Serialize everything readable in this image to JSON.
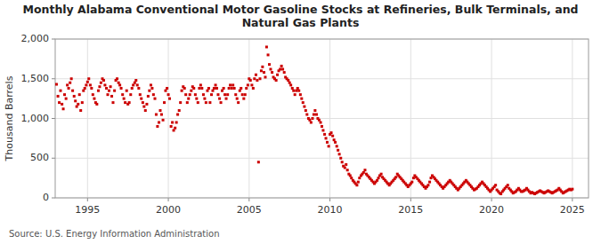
{
  "chart_data": {
    "type": "scatter",
    "title": "Monthly Alabama Conventional Motor Gasoline Stocks at Refineries, Bulk Terminals, and\nNatural Gas Plants",
    "ylabel": "Thousand Barrels",
    "annotation": "Source: U.S. Energy Information Administration",
    "color": "#cc0000",
    "marker": "square",
    "grid": true,
    "xlim": [
      1993.0,
      2026.0
    ],
    "ylim": [
      0,
      2000
    ],
    "xticks": [
      1995,
      2000,
      2005,
      2010,
      2015,
      2020,
      2025
    ],
    "yticks": [
      0,
      500,
      {
        "value": 1000,
        "label": "1,000"
      },
      {
        "value": 1500,
        "label": "1,500"
      },
      {
        "value": 2000,
        "label": "2,000"
      }
    ],
    "x": [
      1993.08,
      1993.17,
      1993.25,
      1993.33,
      1993.42,
      1993.5,
      1993.58,
      1993.67,
      1993.75,
      1993.83,
      1993.92,
      1994.0,
      1994.08,
      1994.17,
      1994.25,
      1994.33,
      1994.42,
      1994.5,
      1994.58,
      1994.67,
      1994.75,
      1994.83,
      1994.92,
      1995.0,
      1995.08,
      1995.17,
      1995.25,
      1995.33,
      1995.42,
      1995.5,
      1995.58,
      1995.67,
      1995.75,
      1995.83,
      1995.92,
      1996.0,
      1996.08,
      1996.17,
      1996.25,
      1996.33,
      1996.42,
      1996.5,
      1996.58,
      1996.67,
      1996.75,
      1996.83,
      1996.92,
      1997.0,
      1997.08,
      1997.17,
      1997.25,
      1997.33,
      1997.42,
      1997.5,
      1997.58,
      1997.67,
      1997.75,
      1997.83,
      1997.92,
      1998.0,
      1998.08,
      1998.17,
      1998.25,
      1998.33,
      1998.42,
      1998.5,
      1998.58,
      1998.67,
      1998.75,
      1998.83,
      1998.92,
      1999.0,
      1999.08,
      1999.17,
      1999.25,
      1999.33,
      1999.42,
      1999.5,
      1999.58,
      1999.67,
      1999.75,
      1999.83,
      1999.92,
      2000.0,
      2000.08,
      2000.17,
      2000.25,
      2000.33,
      2000.42,
      2000.5,
      2000.58,
      2000.67,
      2000.75,
      2000.83,
      2000.92,
      2001.0,
      2001.08,
      2001.17,
      2001.25,
      2001.33,
      2001.42,
      2001.5,
      2001.58,
      2001.67,
      2001.75,
      2001.83,
      2001.92,
      2002.0,
      2002.08,
      2002.17,
      2002.25,
      2002.33,
      2002.42,
      2002.5,
      2002.58,
      2002.67,
      2002.75,
      2002.83,
      2002.92,
      2003.0,
      2003.08,
      2003.17,
      2003.25,
      2003.33,
      2003.42,
      2003.5,
      2003.58,
      2003.67,
      2003.75,
      2003.83,
      2003.92,
      2004.0,
      2004.08,
      2004.17,
      2004.25,
      2004.33,
      2004.42,
      2004.5,
      2004.58,
      2004.67,
      2004.75,
      2004.83,
      2004.92,
      2005.0,
      2005.08,
      2005.17,
      2005.25,
      2005.33,
      2005.42,
      2005.5,
      2005.58,
      2005.67,
      2005.75,
      2005.83,
      2005.92,
      2006.0,
      2006.08,
      2006.17,
      2006.25,
      2006.33,
      2006.42,
      2006.5,
      2006.58,
      2006.67,
      2006.75,
      2006.83,
      2006.92,
      2007.0,
      2007.08,
      2007.17,
      2007.25,
      2007.33,
      2007.42,
      2007.5,
      2007.58,
      2007.67,
      2007.75,
      2007.83,
      2007.92,
      2008.0,
      2008.08,
      2008.17,
      2008.25,
      2008.33,
      2008.42,
      2008.5,
      2008.58,
      2008.67,
      2008.75,
      2008.83,
      2008.92,
      2009.0,
      2009.08,
      2009.17,
      2009.25,
      2009.33,
      2009.42,
      2009.5,
      2009.58,
      2009.67,
      2009.75,
      2009.83,
      2009.92,
      2010.0,
      2010.08,
      2010.17,
      2010.25,
      2010.33,
      2010.42,
      2010.5,
      2010.58,
      2010.67,
      2010.75,
      2010.83,
      2010.92,
      2011.0,
      2011.08,
      2011.17,
      2011.25,
      2011.33,
      2011.42,
      2011.5,
      2011.58,
      2011.67,
      2011.75,
      2011.83,
      2011.92,
      2012.0,
      2012.08,
      2012.17,
      2012.25,
      2012.33,
      2012.42,
      2012.5,
      2012.58,
      2012.67,
      2012.75,
      2012.83,
      2012.92,
      2013.0,
      2013.08,
      2013.17,
      2013.25,
      2013.33,
      2013.42,
      2013.5,
      2013.58,
      2013.67,
      2013.75,
      2013.83,
      2013.92,
      2014.0,
      2014.08,
      2014.17,
      2014.25,
      2014.33,
      2014.42,
      2014.5,
      2014.58,
      2014.67,
      2014.75,
      2014.83,
      2014.92,
      2015.0,
      2015.08,
      2015.17,
      2015.25,
      2015.33,
      2015.42,
      2015.5,
      2015.58,
      2015.67,
      2015.75,
      2015.83,
      2015.92,
      2016.0,
      2016.08,
      2016.17,
      2016.25,
      2016.33,
      2016.42,
      2016.5,
      2016.58,
      2016.67,
      2016.75,
      2016.83,
      2016.92,
      2017.0,
      2017.08,
      2017.17,
      2017.25,
      2017.33,
      2017.42,
      2017.5,
      2017.58,
      2017.67,
      2017.75,
      2017.83,
      2017.92,
      2018.0,
      2018.08,
      2018.17,
      2018.25,
      2018.33,
      2018.42,
      2018.5,
      2018.58,
      2018.67,
      2018.75,
      2018.83,
      2018.92,
      2019.0,
      2019.08,
      2019.17,
      2019.25,
      2019.33,
      2019.42,
      2019.5,
      2019.58,
      2019.67,
      2019.75,
      2019.83,
      2019.92,
      2020.0,
      2020.08,
      2020.17,
      2020.25,
      2020.33,
      2020.42,
      2020.5,
      2020.58,
      2020.67,
      2020.75,
      2020.83,
      2020.92,
      2021.0,
      2021.08,
      2021.17,
      2021.25,
      2021.33,
      2021.42,
      2021.5,
      2021.58,
      2021.67,
      2021.75,
      2021.83,
      2021.92,
      2022.0,
      2022.08,
      2022.17,
      2022.25,
      2022.33,
      2022.42,
      2022.5,
      2022.58,
      2022.67,
      2022.75,
      2022.83,
      2022.92,
      2023.0,
      2023.08,
      2023.17,
      2023.25,
      2023.33,
      2023.42,
      2023.5,
      2023.58,
      2023.67,
      2023.75,
      2023.83,
      2023.92,
      2024.0,
      2024.08,
      2024.17,
      2024.25,
      2024.33,
      2024.42,
      2024.5,
      2024.58,
      2024.67,
      2024.75,
      2024.83,
      2024.92,
      2025.0
    ],
    "values": [
      1430,
      1280,
      1200,
      1350,
      1180,
      1120,
      1300,
      1250,
      1420,
      1380,
      1450,
      1500,
      1350,
      1280,
      1220,
      1150,
      1180,
      1300,
      1100,
      1200,
      1350,
      1380,
      1420,
      1460,
      1500,
      1420,
      1380,
      1300,
      1250,
      1200,
      1180,
      1350,
      1400,
      1450,
      1500,
      1480,
      1420,
      1380,
      1300,
      1350,
      1400,
      1280,
      1200,
      1350,
      1480,
      1500,
      1450,
      1420,
      1380,
      1300,
      1250,
      1200,
      1350,
      1180,
      1200,
      1300,
      1380,
      1420,
      1450,
      1480,
      1420,
      1380,
      1300,
      1250,
      1200,
      1150,
      1100,
      1180,
      1280,
      1350,
      1420,
      1380,
      1300,
      1250,
      1050,
      900,
      950,
      1100,
      1050,
      980,
      1200,
      1350,
      1380,
      1300,
      1250,
      900,
      950,
      850,
      880,
      950,
      1050,
      1100,
      1200,
      1350,
      1400,
      1380,
      1300,
      1200,
      1250,
      1300,
      1350,
      1400,
      1380,
      1300,
      1250,
      1200,
      1380,
      1420,
      1380,
      1300,
      1250,
      1200,
      1350,
      1380,
      1200,
      1300,
      1350,
      1380,
      1420,
      1380,
      1300,
      1250,
      1200,
      1350,
      1380,
      1300,
      1250,
      1300,
      1380,
      1420,
      1380,
      1420,
      1380,
      1300,
      1250,
      1200,
      1350,
      1380,
      1300,
      1250,
      1300,
      1380,
      1420,
      1500,
      1480,
      1420,
      1380,
      1500,
      1550,
      1480,
      450,
      1500,
      1600,
      1650,
      1580,
      1520,
      1900,
      1800,
      1680,
      1620,
      1580,
      1520,
      1500,
      1480,
      1550,
      1600,
      1620,
      1660,
      1620,
      1580,
      1520,
      1500,
      1480,
      1450,
      1420,
      1380,
      1350,
      1300,
      1350,
      1380,
      1350,
      1300,
      1250,
      1200,
      1150,
      1100,
      1050,
      1000,
      980,
      950,
      1000,
      1050,
      1100,
      1050,
      1000,
      980,
      950,
      900,
      850,
      800,
      750,
      700,
      650,
      800,
      820,
      780,
      730,
      700,
      650,
      600,
      550,
      500,
      450,
      400,
      380,
      420,
      350,
      300,
      280,
      250,
      220,
      200,
      180,
      160,
      200,
      250,
      280,
      300,
      320,
      350,
      300,
      280,
      260,
      240,
      220,
      200,
      180,
      200,
      220,
      250,
      280,
      300,
      260,
      240,
      220,
      200,
      180,
      160,
      180,
      200,
      220,
      240,
      260,
      300,
      280,
      260,
      240,
      220,
      200,
      180,
      160,
      140,
      160,
      180,
      200,
      250,
      280,
      260,
      240,
      220,
      200,
      180,
      160,
      140,
      120,
      140,
      160,
      200,
      250,
      280,
      260,
      240,
      220,
      200,
      180,
      160,
      140,
      120,
      140,
      160,
      180,
      200,
      220,
      200,
      180,
      160,
      140,
      120,
      100,
      120,
      140,
      160,
      180,
      200,
      220,
      200,
      180,
      160,
      140,
      120,
      100,
      110,
      120,
      140,
      160,
      180,
      200,
      180,
      160,
      140,
      120,
      100,
      80,
      100,
      120,
      140,
      160,
      100,
      80,
      60,
      50,
      80,
      100,
      120,
      140,
      160,
      120,
      100,
      80,
      60,
      70,
      80,
      100,
      120,
      100,
      80,
      80,
      90,
      100,
      120,
      100,
      80,
      60,
      70,
      60,
      50,
      60,
      70,
      80,
      90,
      80,
      70,
      60,
      70,
      80,
      90,
      80,
      70,
      60,
      70,
      80,
      90,
      100,
      120,
      100,
      80,
      60,
      70,
      80,
      90,
      100,
      110,
      100,
      110
    ]
  }
}
